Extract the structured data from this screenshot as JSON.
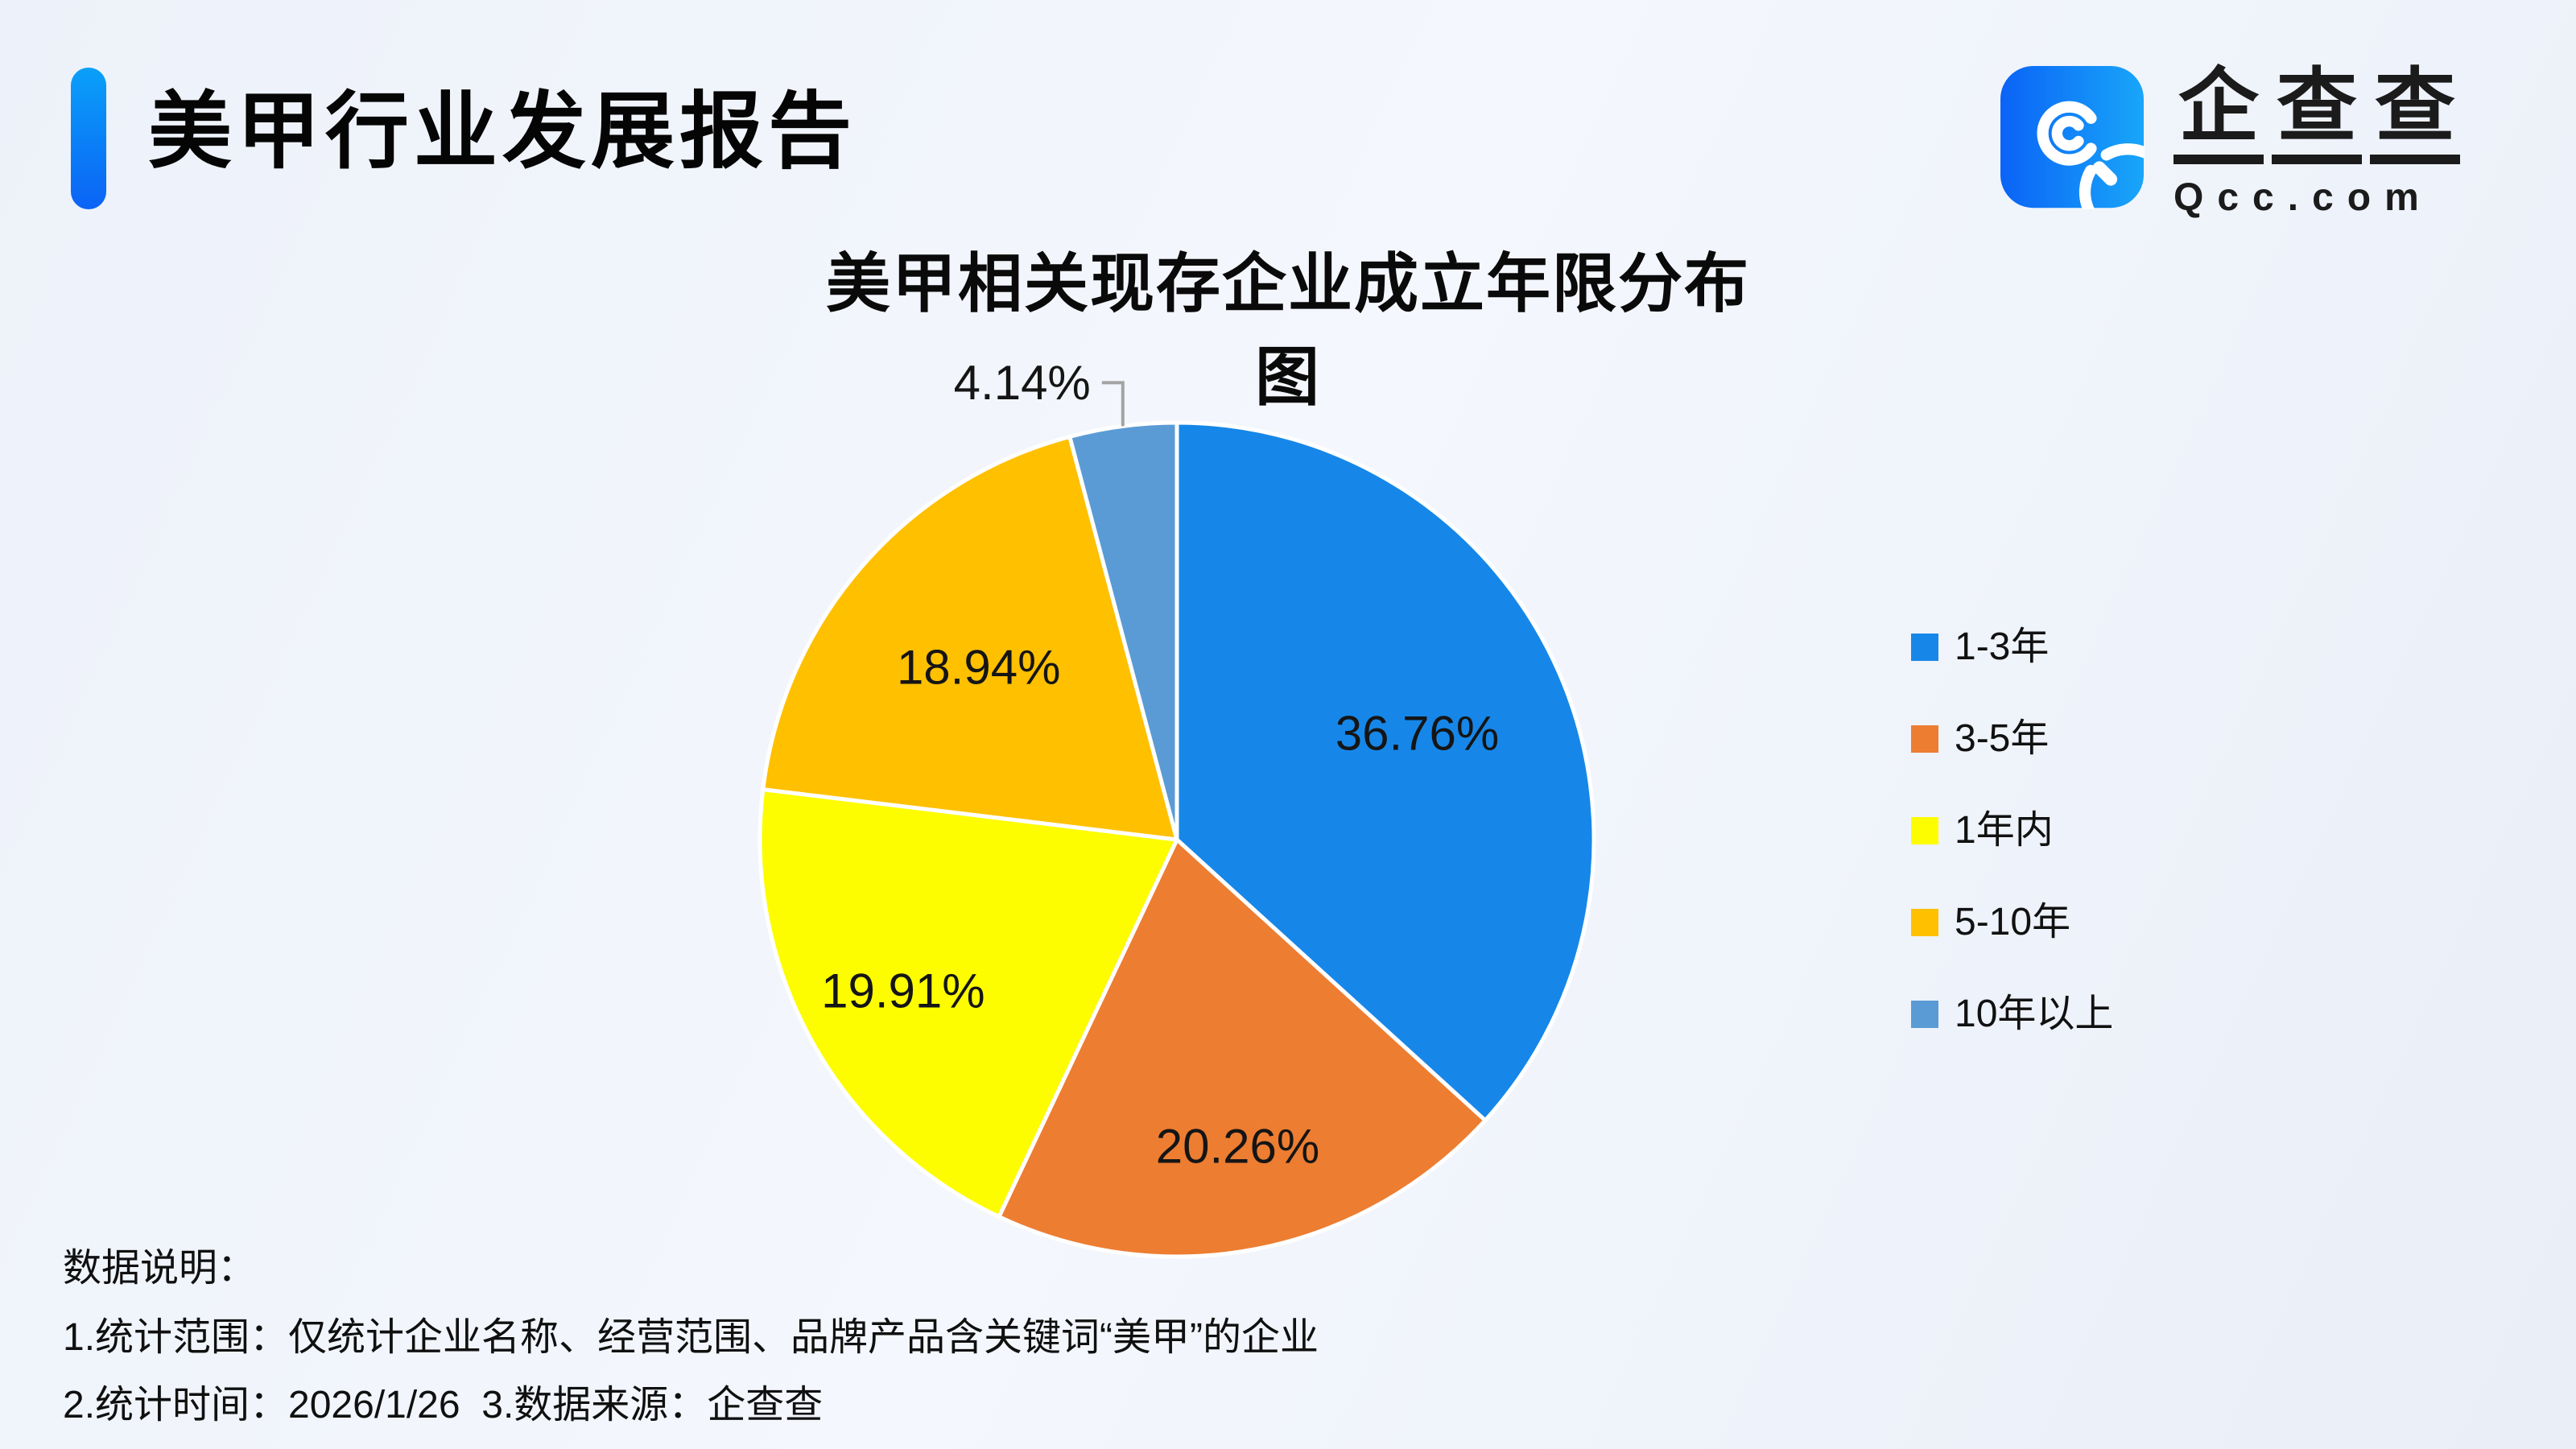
{
  "header": {
    "title": "美甲行业发展报告",
    "brand": {
      "icon": "qcc-logo-icon",
      "name_cn_chars": [
        "企",
        "查",
        "查"
      ],
      "name_en": "Qcc.com"
    }
  },
  "colors": {
    "accent_bar_top": "#0aa0f8",
    "accent_bar_bottom": "#0b63f6",
    "logo_gradient_left": "#0b63f6",
    "logo_gradient_right": "#18a6f9",
    "background": "#eff3fa",
    "slice_border": "#ffffff",
    "leader_line": "#a3a3a3",
    "label_text": "#151515"
  },
  "chart_data": {
    "type": "pie",
    "title": "美甲相关现存企业成立年限分布图",
    "legend_position": "right",
    "start_angle_deg": 0,
    "direction": "clockwise",
    "grid": false,
    "slices": [
      {
        "label": "1-3年",
        "value": 36.76,
        "display": "36.76%",
        "color": "#1687e8",
        "label_inside": true,
        "label_r": 0.63
      },
      {
        "label": "3-5年",
        "value": 20.26,
        "display": "20.26%",
        "color": "#ed7d31",
        "label_inside": true,
        "label_r": 0.75
      },
      {
        "label": "1年内",
        "value": 19.91,
        "display": "19.91%",
        "color": "#fdfd00",
        "label_inside": true,
        "label_r": 0.75
      },
      {
        "label": "5-10年",
        "value": 18.94,
        "display": "18.94%",
        "color": "#ffc000",
        "label_inside": true,
        "label_r": 0.63
      },
      {
        "label": "10年以上",
        "value": 4.14,
        "display": "4.14%",
        "color": "#5b9bd5",
        "label_inside": false,
        "label_r": 1.0
      }
    ]
  },
  "footer": {
    "heading": "数据说明：",
    "line1": "1.统计范围：仅统计企业名称、经营范围、品牌产品含关键词“美甲”的企业",
    "line2": "2.统计时间：2026/1/26  3.数据来源：企查查"
  }
}
